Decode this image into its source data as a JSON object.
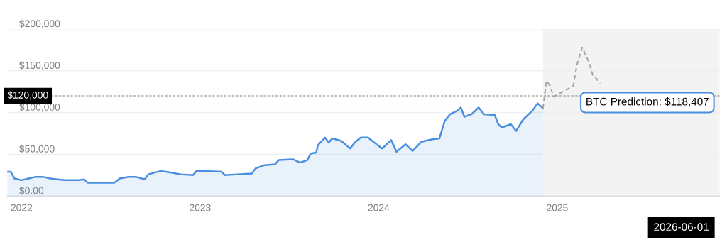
{
  "chart_data": {
    "type": "area",
    "xlim": [
      2021.92,
      2025.91
    ],
    "xticks": [
      2022,
      2023,
      2024,
      2025
    ],
    "ylim": [
      0,
      200000
    ],
    "yticks": [
      {
        "value": 0,
        "label": "$0.00"
      },
      {
        "value": 50000,
        "label": "$50,000"
      },
      {
        "value": 100000,
        "label": "$100,000"
      },
      {
        "value": 150000,
        "label": "$150,000"
      },
      {
        "value": 200000,
        "label": "$200,000"
      }
    ],
    "grid": "y",
    "legend": false,
    "series": [
      {
        "color": "#4a8ee0",
        "line_style": "solid",
        "x": [
          2021.92,
          2021.94,
          2021.96,
          2022.0,
          2022.04,
          2022.08,
          2022.12,
          2022.16,
          2022.2,
          2022.24,
          2022.28,
          2022.32,
          2022.35,
          2022.37,
          2022.44,
          2022.52,
          2022.55,
          2022.6,
          2022.64,
          2022.69,
          2022.71,
          2022.78,
          2022.84,
          2022.89,
          2022.96,
          2022.98,
          2023.03,
          2023.12,
          2023.14,
          2023.21,
          2023.29,
          2023.31,
          2023.36,
          2023.42,
          2023.44,
          2023.52,
          2023.56,
          2023.6,
          2023.62,
          2023.65,
          2023.66,
          2023.7,
          2023.72,
          2023.74,
          2023.79,
          2023.84,
          2023.87,
          2023.9,
          2023.94,
          2024.0,
          2024.02,
          2024.07,
          2024.1,
          2024.15,
          2024.19,
          2024.24,
          2024.3,
          2024.34,
          2024.37,
          2024.4,
          2024.44,
          2024.46,
          2024.48,
          2024.52,
          2024.56,
          2024.59,
          2024.65,
          2024.67,
          2024.69,
          2024.74,
          2024.77,
          2024.81,
          2024.86,
          2024.89,
          2024.92
        ],
        "values": [
          29000,
          29000,
          21000,
          19000,
          21000,
          23000,
          23000,
          21000,
          20000,
          19000,
          19000,
          19000,
          20000,
          16000,
          16000,
          16000,
          21000,
          23000,
          23000,
          20000,
          26000,
          30000,
          28000,
          26000,
          25000,
          30000,
          30000,
          29000,
          25000,
          26000,
          27000,
          33000,
          37000,
          38000,
          43000,
          44000,
          40000,
          43000,
          51000,
          52000,
          61000,
          70000,
          64000,
          69000,
          66000,
          57000,
          65000,
          70000,
          70000,
          60000,
          57000,
          67000,
          53000,
          62000,
          54000,
          65000,
          68000,
          69000,
          90000,
          98000,
          102000,
          106000,
          95000,
          98000,
          106000,
          98000,
          97000,
          86000,
          82000,
          86000,
          78000,
          92000,
          102000,
          111000,
          105000
        ]
      },
      {
        "type": "line",
        "color": "#a6a6a6",
        "line_style": "dashed",
        "x": [
          2024.92,
          2024.94,
          2024.96,
          2024.98,
          2025.03,
          2025.09,
          2025.11,
          2025.14,
          2025.18,
          2025.2,
          2025.21,
          2025.24
        ],
        "values": [
          105000,
          138000,
          132000,
          119000,
          null,
          132000,
          157000,
          178000,
          159000,
          144000,
          143000,
          135000
        ]
      }
    ],
    "bands": [
      {
        "axis": "x",
        "from": 2024.92,
        "to": 2025.91,
        "color": "#f3f3f3"
      }
    ],
    "ref_lines": [
      {
        "axis": "y",
        "value": 120000,
        "label": "$120,000",
        "color": "#808080",
        "line_style": "dashed"
      }
    ],
    "annotations": [
      "BTC Prediction: $118,407",
      "2026-06-01"
    ]
  }
}
